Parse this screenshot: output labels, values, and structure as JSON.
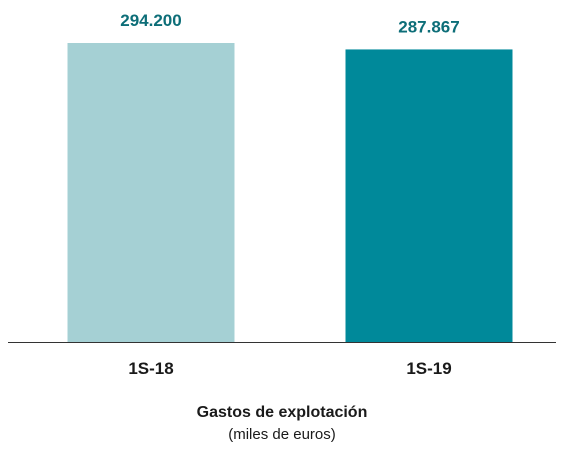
{
  "chart_data": {
    "type": "bar",
    "title": "Gastos de explotación",
    "subtitle": "(miles de euros)",
    "categories": [
      "1S-18",
      "1S-19"
    ],
    "values": [
      294200,
      287867
    ],
    "value_labels": [
      "294.200",
      "287.867"
    ],
    "ylim": [
      0,
      300000
    ],
    "grid": false,
    "legend": "none",
    "colors": {
      "bars": [
        "#a5d0d4",
        "#00899a"
      ],
      "value_labels": "#0d6e78",
      "axis": "#333333"
    }
  }
}
